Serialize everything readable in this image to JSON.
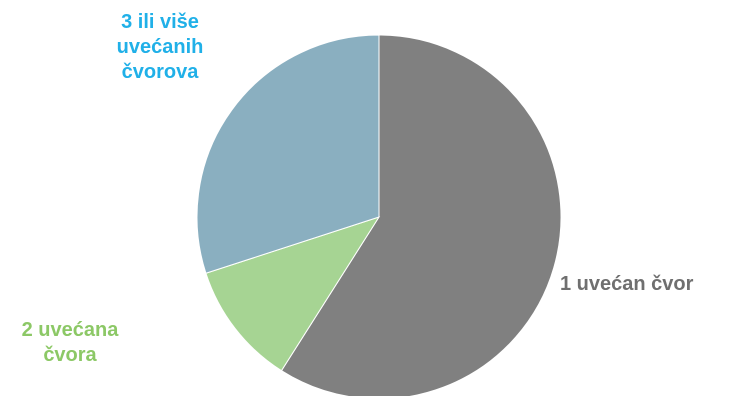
{
  "chart_data": {
    "type": "pie",
    "title": "",
    "slices": [
      {
        "label": "1 uvećan čvor",
        "value": 59,
        "color": "#808080",
        "label_color": "#6f6f6f"
      },
      {
        "label": "2 uvećana\nčvora",
        "value": 11,
        "color": "#a6d493",
        "label_color": "#8cc866"
      },
      {
        "label": "3 ili više\nuvećanih\nčvorova",
        "value": 30,
        "color": "#8aafc0",
        "label_color": "#20b0e8"
      }
    ],
    "start_angle_deg": 0,
    "direction": "clockwise",
    "legend": "none"
  }
}
